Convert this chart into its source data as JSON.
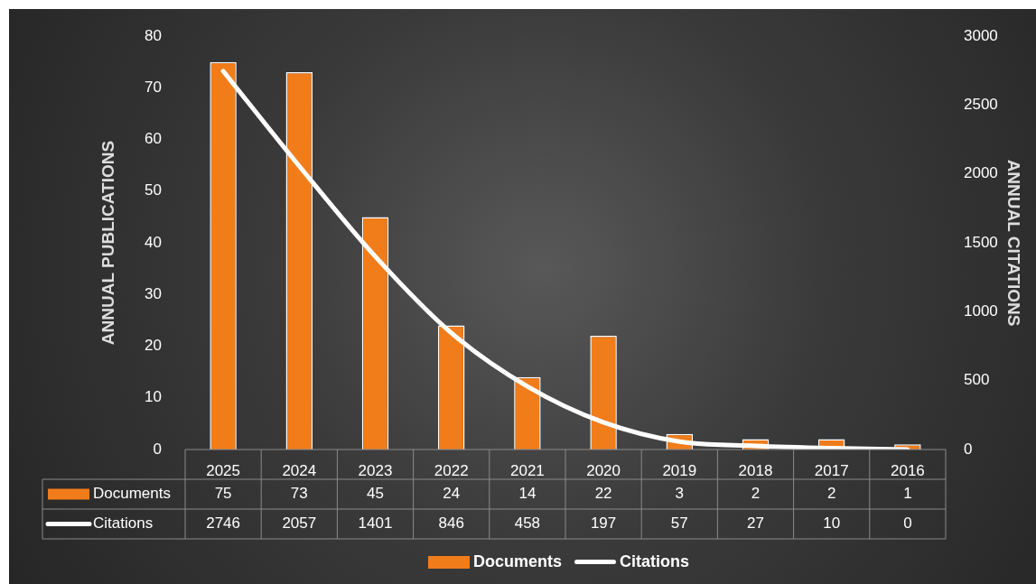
{
  "chart_data": {
    "type": "bar",
    "ylabel": "ANNUAL PUBLICATIONS",
    "y2label": "ANNUAL CITATIONS",
    "categories": [
      "2025",
      "2024",
      "2023",
      "2022",
      "2021",
      "2020",
      "2019",
      "2018",
      "2017",
      "2016"
    ],
    "series": [
      {
        "name": "Documents",
        "color": "#f07c1a",
        "values": [
          75,
          73,
          45,
          24,
          14,
          22,
          3,
          2,
          2,
          1
        ]
      },
      {
        "name": "Citations",
        "type": "line",
        "axis": "y2",
        "color": "#ffffff",
        "values": [
          2746,
          2057,
          1401,
          846,
          458,
          197,
          57,
          27,
          10,
          0
        ]
      }
    ],
    "ylim": [
      0,
      80
    ],
    "yticks": [
      0,
      10,
      20,
      30,
      40,
      50,
      60,
      70,
      80
    ],
    "y2lim": [
      0,
      3000
    ],
    "y2ticks": [
      0,
      500,
      1000,
      1500,
      2000,
      2500,
      3000
    ],
    "grid": false,
    "legend": "bottom",
    "data_labels": true,
    "marker": "none",
    "line_style": "solid"
  }
}
